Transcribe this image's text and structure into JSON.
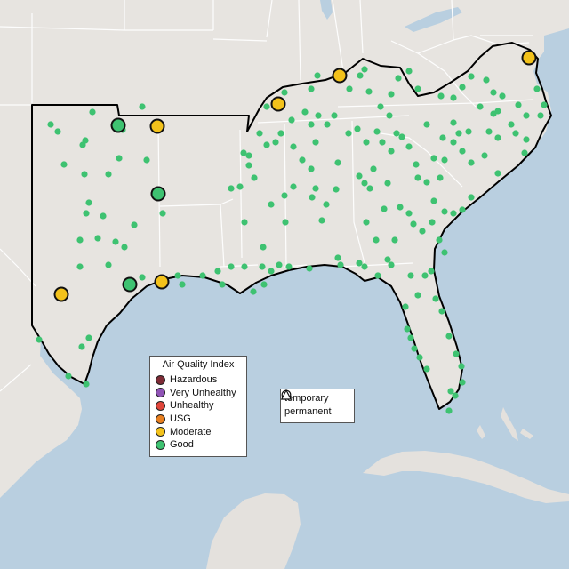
{
  "legend": {
    "title": "Air Quality Index",
    "categories": [
      {
        "label": "Hazardous",
        "color": "#7e2b35"
      },
      {
        "label": "Very Unhealthy",
        "color": "#8f53b5"
      },
      {
        "label": "Unhealthy",
        "color": "#e0453a"
      },
      {
        "label": "USG",
        "color": "#e87f1f"
      },
      {
        "label": "Moderate",
        "color": "#f3c21b"
      },
      {
        "label": "Good",
        "color": "#3ec271"
      }
    ]
  },
  "shape_legend": {
    "temporary": "temporary",
    "permanent": "permanent"
  },
  "colors": {
    "land": "#e7e4e0",
    "water": "#b9cfe0",
    "region_outline": "#000000",
    "state_borders": "#ffffff"
  }
}
